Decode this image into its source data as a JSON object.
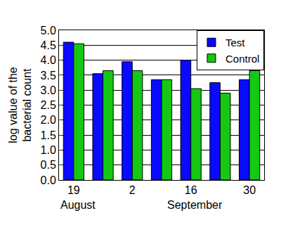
{
  "chart_data": {
    "type": "bar",
    "y_label": "log value of the\nbacterial count",
    "categories": [
      "19",
      null,
      "2",
      null,
      "16",
      null,
      "30"
    ],
    "annotations": [
      {
        "text": "August",
        "at": "19"
      },
      {
        "text": "September",
        "at": "16"
      }
    ],
    "series": [
      {
        "name": "Test",
        "color": "#0a0aff",
        "values": [
          4.6,
          3.55,
          3.95,
          3.35,
          4.0,
          3.25,
          3.35
        ]
      },
      {
        "name": "Control",
        "color": "#14c814",
        "values": [
          4.55,
          3.65,
          3.65,
          3.35,
          3.05,
          2.9,
          3.65
        ]
      }
    ],
    "ylim": [
      0,
      5
    ],
    "yticks": [
      {
        "value": 0,
        "label": "0.0"
      },
      0.5,
      {
        "value": 1,
        "label": "1.0"
      },
      1.5,
      {
        "value": 2,
        "label": "2.0"
      },
      2.5,
      {
        "value": 3,
        "label": "3.0"
      },
      3.5,
      {
        "value": 4,
        "label": "4.0"
      },
      4.5,
      {
        "value": 5,
        "label": "5.0"
      }
    ],
    "grid": true,
    "legend": "top-right"
  }
}
